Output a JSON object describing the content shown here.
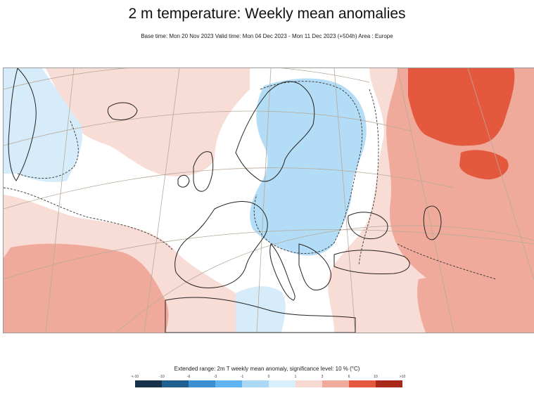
{
  "title": "2 m temperature: Weekly mean anomalies",
  "subtitle": "Base time: Mon 20 Nov 2023 Valid time: Mon 04 Dec 2023 - Mon 11 Dec 2023 (+504h) Area : Europe",
  "legend": {
    "title": "Extended range: 2m T weekly mean anomaly, significance level: 10 % (°C)",
    "ticks": [
      "<-10",
      "-10",
      "-6",
      "-3",
      "-1",
      "0",
      "1",
      "3",
      "6",
      "10",
      ">10"
    ],
    "colors": [
      "#15324a",
      "#1f5f8f",
      "#3a8fd3",
      "#5fb3f0",
      "#aad8f5",
      "#d9eefb",
      "#f7d8d2",
      "#efaa9b",
      "#e4583e",
      "#a8281a",
      "#5a1309"
    ]
  },
  "map": {
    "region": "Europe",
    "colors": {
      "land_background": "#ffffff",
      "cold_light": "#d6ecfb",
      "cold_medium": "#b3dcf6",
      "warm_light": "#f8dcd6",
      "warm_medium": "#f0aa9c",
      "warm_strong": "#e4583e",
      "coastline": "#222222",
      "graticule": "#b8aa99",
      "significance_contour": "#333333"
    }
  }
}
